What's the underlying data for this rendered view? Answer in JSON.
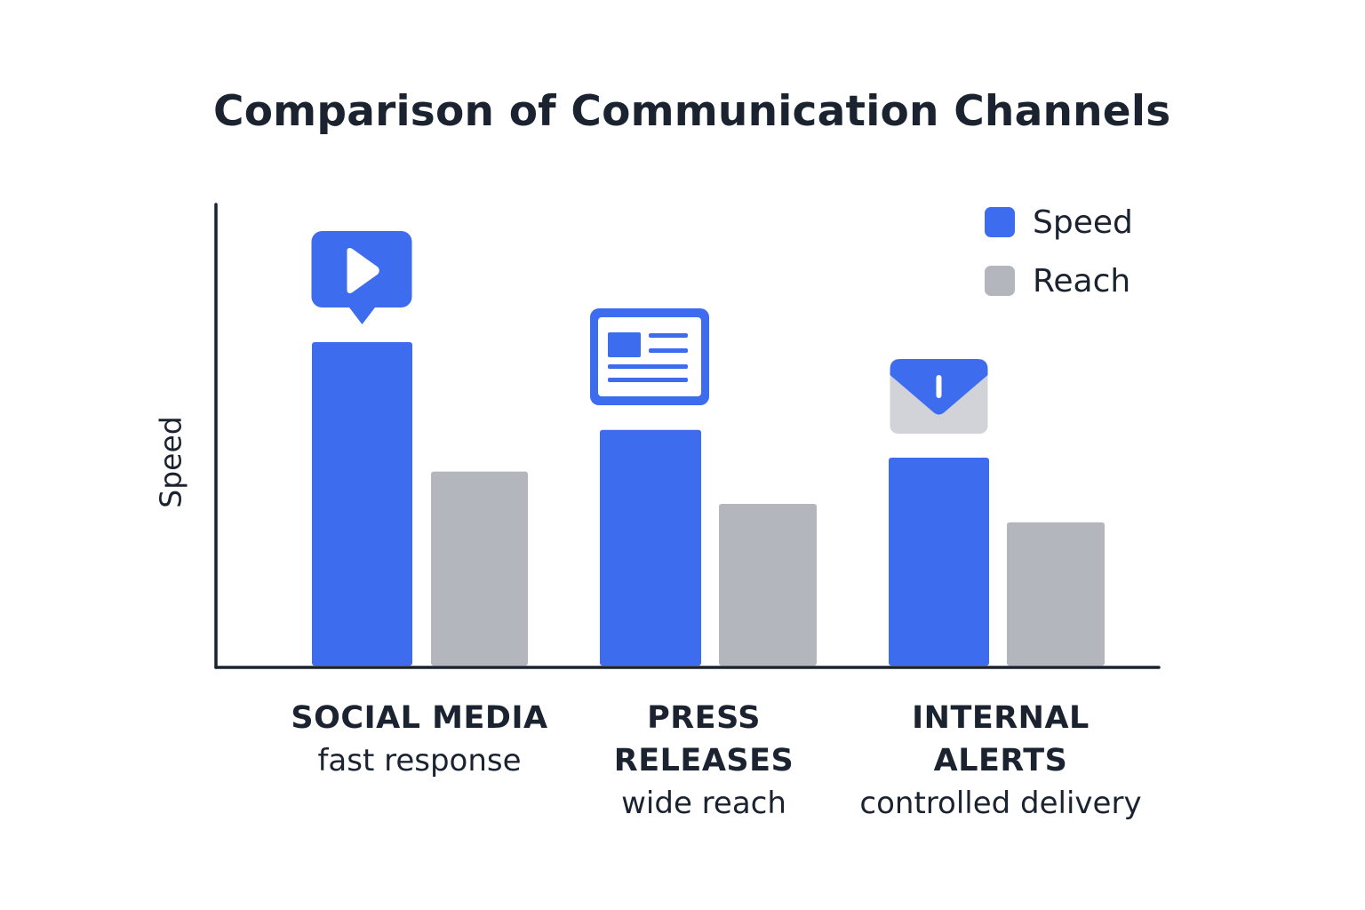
{
  "chart_data": {
    "type": "bar",
    "title": "Comparison of Communication Channels",
    "ylabel": "Speed",
    "xlabel": "",
    "ylim": [
      0,
      100
    ],
    "grid": false,
    "legend_position": "top-right",
    "categories": [
      "SOCIAL MEDIA",
      "PRESS RELEASES",
      "INTERNAL ALERTS"
    ],
    "category_labels": [
      {
        "title": [
          "SOCIAL MEDIA"
        ],
        "subtitle": "fast response"
      },
      {
        "title": [
          "PRESS",
          "RELEASES"
        ],
        "subtitle": "wide reach"
      },
      {
        "title": [
          "INTERNAL",
          "ALERTS"
        ],
        "subtitle": "controlled delivery"
      }
    ],
    "category_icons": [
      "video-play-icon",
      "newsletter-icon",
      "alert-envelope-icon"
    ],
    "series": [
      {
        "name": "Speed",
        "color": "#3d6cee",
        "values": [
          70,
          51,
          45
        ]
      },
      {
        "name": "Reach",
        "color": "#b3b6bd",
        "values": [
          42,
          35,
          31
        ]
      }
    ]
  },
  "colors": {
    "accent": "#3d6cee",
    "secondary": "#b3b6bd",
    "text": "#1c2330",
    "axis": "#1c2330"
  }
}
